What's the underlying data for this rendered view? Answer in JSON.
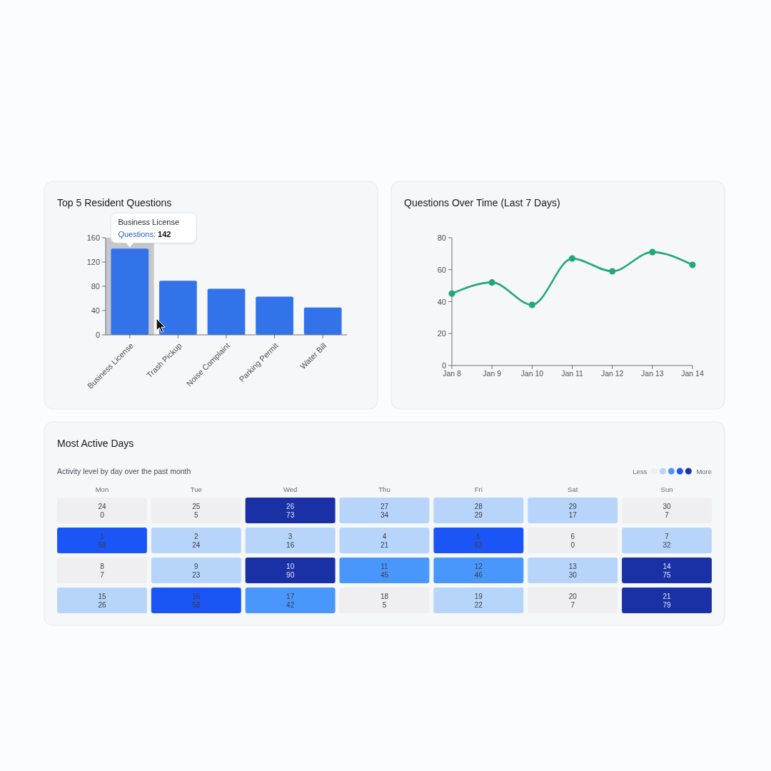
{
  "chart_data": [
    {
      "type": "bar",
      "title": "Top 5 Resident Questions",
      "categories": [
        "Business License",
        "Trash Pickup",
        "Noise Complaint",
        "Parking Permit",
        "Water Bill"
      ],
      "values": [
        142,
        89,
        76,
        63,
        45
      ],
      "color": "#3373ea",
      "ylim": [
        0,
        160
      ],
      "yticks": [
        0,
        40,
        80,
        120,
        160
      ],
      "bands": [
        {
          "axis": "x",
          "from": "Business License",
          "to": "Business License",
          "color": "#c6c7ca"
        }
      ],
      "annotations": [
        {
          "text": "Questions: 142",
          "x": "Business License",
          "y": 142
        }
      ]
    },
    {
      "type": "line",
      "title": "Questions Over Time (Last 7 Days)",
      "categories": [
        "Jan 8",
        "Jan 9",
        "Jan 10",
        "Jan 11",
        "Jan 12",
        "Jan 13",
        "Jan 14"
      ],
      "values": [
        45,
        52,
        38,
        67,
        59,
        71,
        63
      ],
      "color": "#22a878",
      "marker": "circle",
      "ylim": [
        0,
        80
      ],
      "yticks": [
        0,
        20,
        40,
        60,
        80
      ]
    },
    {
      "type": "heatmap",
      "title": "Most Active Days",
      "subtitle": "Activity level by day over the past month",
      "categories": [
        "Mon",
        "Tue",
        "Wed",
        "Thu",
        "Fri",
        "Sat",
        "Sun"
      ],
      "y_categories": [
        null,
        null,
        null,
        null
      ],
      "cells": [
        [
          0,
          5,
          73,
          34,
          29,
          17,
          7
        ],
        [
          58,
          24,
          16,
          21,
          63,
          0,
          32
        ],
        [
          7,
          23,
          90,
          45,
          46,
          30,
          75
        ],
        [
          26,
          58,
          42,
          5,
          22,
          7,
          79
        ]
      ],
      "data_labels": true,
      "colors": [
        [
          "#efeff1",
          "#efeff1",
          "#1a31a6",
          "#b7d5fa",
          "#b7d5fa",
          "#b7d5fa",
          "#efeff1"
        ],
        [
          "#1b55f6",
          "#b7d5fa",
          "#b7d5fa",
          "#b7d5fa",
          "#1b55f6",
          "#efeff1",
          "#b7d5fa"
        ],
        [
          "#efeff1",
          "#b7d5fa",
          "#1a31a6",
          "#4a97fb",
          "#4a97fb",
          "#b7d5fa",
          "#1a31a6"
        ],
        [
          "#b7d5fa",
          "#1b55f6",
          "#4a97fb",
          "#efeff1",
          "#b7d5fa",
          "#efeff1",
          "#1a31a6"
        ]
      ],
      "annotations": [
        "Less",
        "More",
        "24",
        "25",
        "26",
        "27",
        "28",
        "29",
        "30",
        "1",
        "2",
        "3",
        "4",
        "5",
        "6",
        "7",
        "8",
        "9",
        "10",
        "11",
        "12",
        "13",
        "14",
        "15",
        "16",
        "17",
        "18",
        "19",
        "20",
        "21"
      ]
    }
  ]
}
